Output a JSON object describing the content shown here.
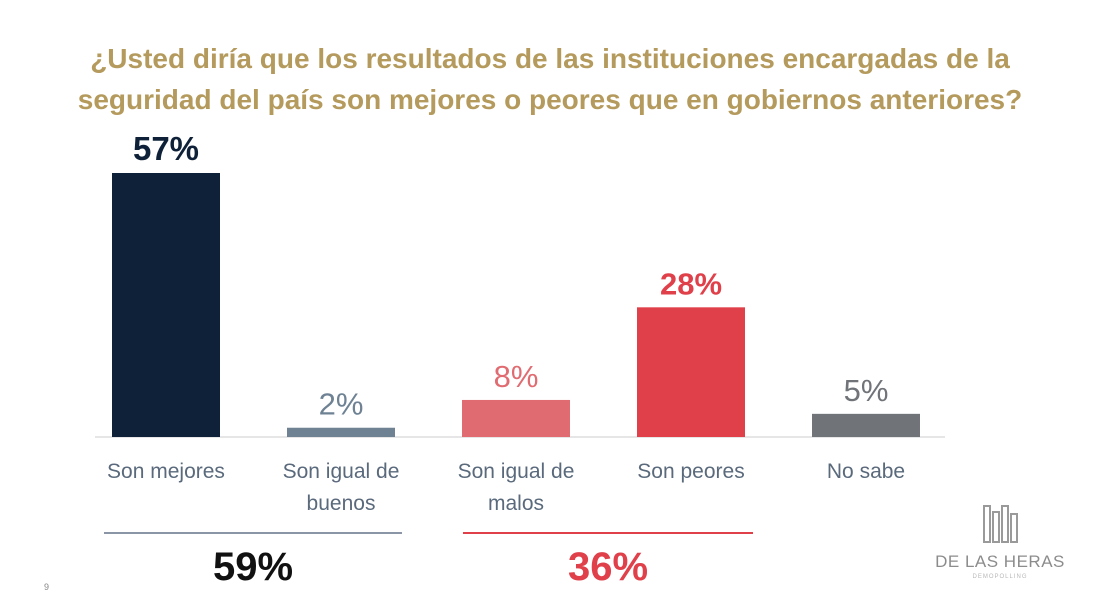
{
  "chart_data": {
    "type": "bar",
    "title": "¿Usted diría que los resultados de las instituciones encargadas de la seguridad del país son mejores o peores que en gobiernos anteriores?",
    "categories": [
      "Son mejores",
      "Son igual de buenos",
      "Son igual de malos",
      "Son peores",
      "No sabe"
    ],
    "category_lines": [
      [
        "Son mejores"
      ],
      [
        "Son igual de",
        "buenos"
      ],
      [
        "Son igual de",
        "malos"
      ],
      [
        "Son peores"
      ],
      [
        "No sabe"
      ]
    ],
    "values": [
      57,
      2,
      8,
      28,
      5
    ],
    "data_labels": [
      "57%",
      "2%",
      "8%",
      "28%",
      "5%"
    ],
    "colors": [
      "#0e2138",
      "#6e8294",
      "#e06c72",
      "#e0404a",
      "#707479"
    ],
    "label_colors": [
      "#0e2138",
      "#6e8294",
      "#e06c72",
      "#e0404a",
      "#707479"
    ],
    "ylim": [
      0,
      57
    ],
    "groups": [
      {
        "label": "59%",
        "color": "#111111",
        "line_color": "#8a96a6"
      },
      {
        "label": "36%",
        "color": "#e0404a",
        "line_color": "#e0404a"
      }
    ]
  },
  "logo": {
    "text": "DE LAS HERAS",
    "subtext": "DEMOPOLLING"
  },
  "page_number": "9"
}
